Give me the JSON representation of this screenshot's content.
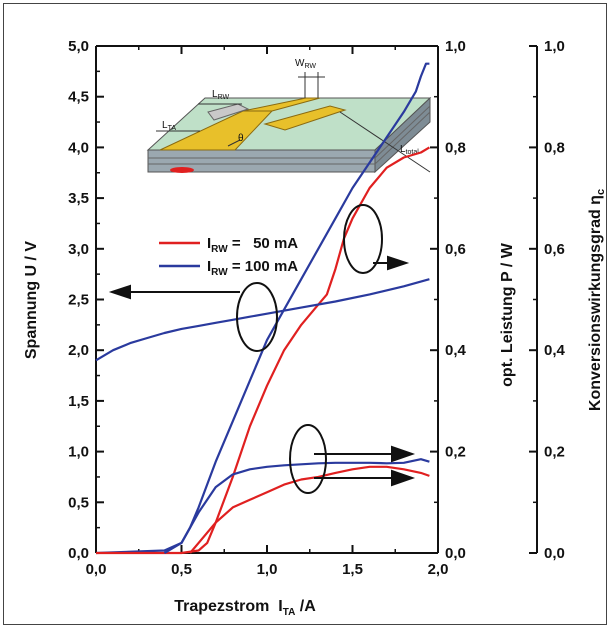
{
  "chart_data": {
    "type": "line",
    "xlabel": "Trapezstrom",
    "xlabel_sym": "I",
    "xlabel_sub": "TA",
    "xlabel_unit": "/A",
    "ylabel_left": "Spannung U / V",
    "ylabel_mid": "opt. Leistung P / W",
    "ylabel_right": "Konversionswirkungsgrad η",
    "ylabel_right_sub": "c",
    "xlim": [
      0,
      2.0
    ],
    "ylim_left": [
      0,
      5.0
    ],
    "ylim_mid": [
      0,
      1.0
    ],
    "ylim_right": [
      0,
      1.0
    ],
    "x_ticks": [
      "0,0",
      "0,5",
      "1,0",
      "1,5",
      "2,0"
    ],
    "y_left_ticks": [
      "0,0",
      "0,5",
      "1,0",
      "1,5",
      "2,0",
      "2,5",
      "3,0",
      "3,5",
      "4,0",
      "4,5",
      "5,0"
    ],
    "y_mid_ticks": [
      "0,0",
      "0,2",
      "0,4",
      "0,6",
      "0,8",
      "1,0"
    ],
    "y_right_ticks": [
      "0,0",
      "0,2",
      "0,4",
      "0,6",
      "0,8",
      "1,0"
    ],
    "legend": [
      {
        "sym": "I",
        "sub": "RW",
        "text": " =   50 mA",
        "color": "#e02020"
      },
      {
        "sym": "I",
        "sub": "RW",
        "text": " = 100 mA",
        "color": "#2a3a9e"
      }
    ],
    "inset_labels": {
      "w": "W",
      "w_sub": "RW",
      "l_rw": "L",
      "l_rw_sub": "RW",
      "l_ta": "L",
      "l_ta_sub": "TA",
      "theta": "θ",
      "l_total": "L",
      "l_total_sub": "total"
    },
    "series": [
      {
        "name": "I_RW = 100 mA",
        "color": "#2a3a9e",
        "axis": "mid",
        "x": [
          0.0,
          0.4,
          0.5,
          0.55,
          0.6,
          0.7,
          0.8,
          0.9,
          1.0,
          1.1,
          1.2,
          1.3,
          1.4,
          1.5,
          1.6,
          1.7,
          1.8,
          1.87,
          1.9,
          1.93,
          1.95
        ],
        "values": [
          0.0,
          0.005,
          0.02,
          0.05,
          0.09,
          0.18,
          0.26,
          0.34,
          0.42,
          0.48,
          0.54,
          0.6,
          0.66,
          0.72,
          0.77,
          0.82,
          0.87,
          0.91,
          0.94,
          0.965,
          0.965
        ]
      },
      {
        "name": "I_RW = 50 mA",
        "color": "#e02020",
        "axis": "mid",
        "x": [
          0.0,
          0.5,
          0.6,
          0.65,
          0.7,
          0.8,
          0.9,
          1.0,
          1.1,
          1.2,
          1.3,
          1.35,
          1.4,
          1.45,
          1.5,
          1.6,
          1.7,
          1.8,
          1.9,
          1.95
        ],
        "values": [
          0.0,
          0.0,
          0.005,
          0.02,
          0.06,
          0.15,
          0.25,
          0.33,
          0.4,
          0.45,
          0.49,
          0.51,
          0.56,
          0.62,
          0.66,
          0.72,
          0.76,
          0.78,
          0.79,
          0.8
        ]
      },
      {
        "name": "Spannung 100 mA",
        "color": "#2a3a9e",
        "axis": "left",
        "x": [
          0.0,
          0.1,
          0.2,
          0.3,
          0.4,
          0.5,
          0.6,
          0.7,
          0.8,
          0.9,
          1.0,
          1.2,
          1.4,
          1.6,
          1.8,
          1.95
        ],
        "values": [
          1.9,
          2.0,
          2.07,
          2.12,
          2.17,
          2.21,
          2.24,
          2.27,
          2.3,
          2.33,
          2.36,
          2.42,
          2.48,
          2.55,
          2.63,
          2.7
        ]
      },
      {
        "name": "Konversion 100 mA",
        "color": "#2a3a9e",
        "axis": "right",
        "x": [
          0.4,
          0.5,
          0.6,
          0.7,
          0.8,
          0.9,
          1.0,
          1.1,
          1.2,
          1.3,
          1.4,
          1.5,
          1.6,
          1.7,
          1.8,
          1.9,
          1.95
        ],
        "values": [
          0.0,
          0.02,
          0.08,
          0.13,
          0.155,
          0.165,
          0.17,
          0.173,
          0.175,
          0.177,
          0.178,
          0.178,
          0.178,
          0.177,
          0.178,
          0.185,
          0.18
        ]
      },
      {
        "name": "Konversion 50 mA",
        "color": "#e02020",
        "axis": "right",
        "x": [
          0.55,
          0.6,
          0.7,
          0.8,
          0.9,
          1.0,
          1.1,
          1.2,
          1.3,
          1.4,
          1.5,
          1.6,
          1.7,
          1.8,
          1.9,
          1.95
        ],
        "values": [
          0.0,
          0.02,
          0.06,
          0.09,
          0.105,
          0.12,
          0.135,
          0.145,
          0.15,
          0.158,
          0.165,
          0.17,
          0.17,
          0.165,
          0.158,
          0.152
        ]
      }
    ]
  }
}
